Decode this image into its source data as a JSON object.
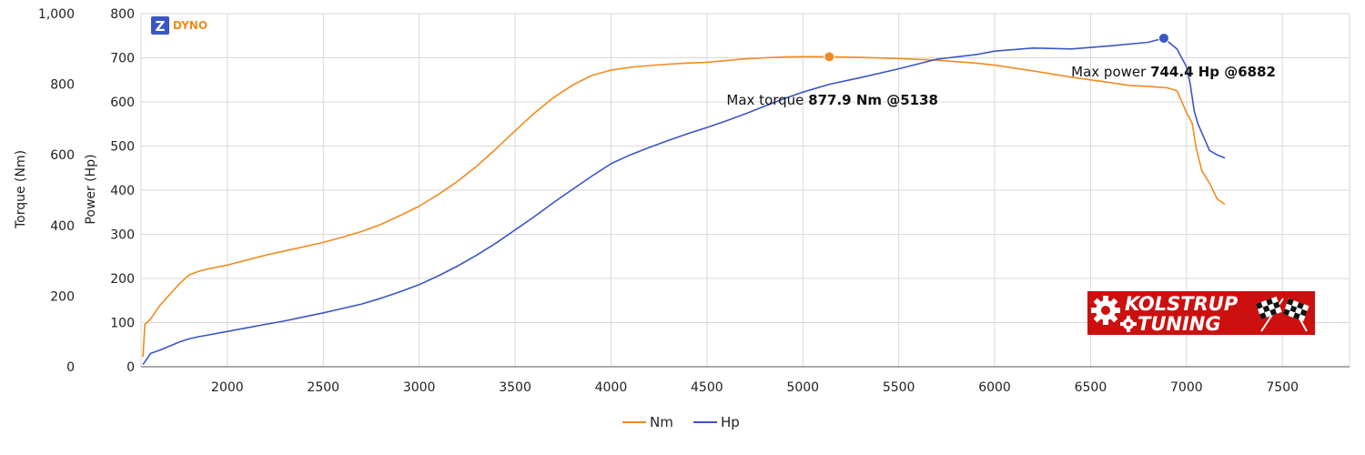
{
  "brand": {
    "name": "DYNO",
    "badge_letter": "Z",
    "logo_line1": "KOLSTRUP",
    "logo_line2": "TUNING"
  },
  "colors": {
    "torque": "#f28a1f",
    "power": "#3a56c5",
    "grid": "#d9d9d9",
    "logo_bg": "#cc1010"
  },
  "chart_data": {
    "type": "line",
    "xlabel": "",
    "x_ticks": [
      "2000",
      "2500",
      "3000",
      "3500",
      "4000",
      "4500",
      "5000",
      "5500",
      "6000",
      "6500",
      "7000",
      "7500"
    ],
    "xlim": [
      1550,
      7850
    ],
    "grid": true,
    "legend_position": "bottom-center",
    "axes": {
      "torque": {
        "label": "Torque (Nm)",
        "ticks": [
          "0",
          "200",
          "400",
          "600",
          "800",
          "1,000"
        ],
        "ylim": [
          0,
          1000
        ]
      },
      "power": {
        "label": "Power (Hp)",
        "ticks": [
          "0",
          "100",
          "200",
          "300",
          "400",
          "500",
          "600",
          "700",
          "800"
        ],
        "ylim": [
          0,
          800
        ]
      }
    },
    "series": [
      {
        "name": "Nm",
        "axis": "torque",
        "x": [
          1560,
          1570,
          1600,
          1650,
          1700,
          1750,
          1800,
          1850,
          1900,
          2000,
          2100,
          2200,
          2300,
          2400,
          2500,
          2600,
          2700,
          2800,
          2900,
          3000,
          3100,
          3200,
          3300,
          3400,
          3500,
          3600,
          3700,
          3800,
          3900,
          4000,
          4100,
          4200,
          4300,
          4400,
          4500,
          4600,
          4700,
          4800,
          4900,
          5000,
          5138,
          5300,
          5500,
          5700,
          5900,
          6000,
          6200,
          6400,
          6600,
          6700,
          6800,
          6900,
          6950,
          7000,
          7030,
          7050,
          7080,
          7120,
          7160,
          7200
        ],
        "values": [
          28,
          120,
          135,
          175,
          205,
          235,
          260,
          270,
          277,
          288,
          302,
          316,
          328,
          340,
          352,
          367,
          383,
          403,
          428,
          455,
          488,
          525,
          568,
          617,
          668,
          718,
          762,
          798,
          825,
          840,
          848,
          853,
          857,
          860,
          862,
          867,
          872,
          875,
          877,
          878,
          877.9,
          876,
          873,
          868,
          860,
          854,
          838,
          820,
          805,
          797,
          794,
          790,
          782,
          720,
          690,
          620,
          555,
          520,
          475,
          460
        ]
      },
      {
        "name": "Hp",
        "axis": "power",
        "x": [
          1560,
          1600,
          1650,
          1700,
          1750,
          1800,
          1850,
          1900,
          2000,
          2100,
          2200,
          2300,
          2400,
          2500,
          2600,
          2700,
          2800,
          2900,
          3000,
          3100,
          3200,
          3300,
          3400,
          3500,
          3600,
          3700,
          3800,
          3900,
          4000,
          4100,
          4200,
          4300,
          4400,
          4500,
          4600,
          4700,
          4800,
          4900,
          5000,
          5138,
          5300,
          5500,
          5700,
          5900,
          6000,
          6200,
          6400,
          6600,
          6800,
          6882,
          6950,
          7000,
          7020,
          7040,
          7060,
          7080,
          7120,
          7160,
          7200
        ],
        "values": [
          5,
          30,
          38,
          47,
          56,
          63,
          68,
          72,
          80,
          88,
          96,
          104,
          113,
          122,
          132,
          142,
          155,
          170,
          186,
          206,
          228,
          253,
          280,
          310,
          340,
          372,
          402,
          432,
          460,
          480,
          497,
          513,
          528,
          542,
          557,
          573,
          590,
          607,
          622,
          640,
          655,
          675,
          697,
          707,
          715,
          722,
          720,
          727,
          735,
          744.4,
          720,
          680,
          640,
          580,
          550,
          530,
          490,
          480,
          473
        ]
      }
    ],
    "annotations": [
      {
        "series": "Nm",
        "x": 5138,
        "y": 877.9,
        "prefix": "Max torque ",
        "value": "877.9 Nm @5138"
      },
      {
        "series": "Hp",
        "x": 6882,
        "y": 744.4,
        "prefix": "Max power ",
        "value": "744.4 Hp @6882"
      }
    ]
  }
}
